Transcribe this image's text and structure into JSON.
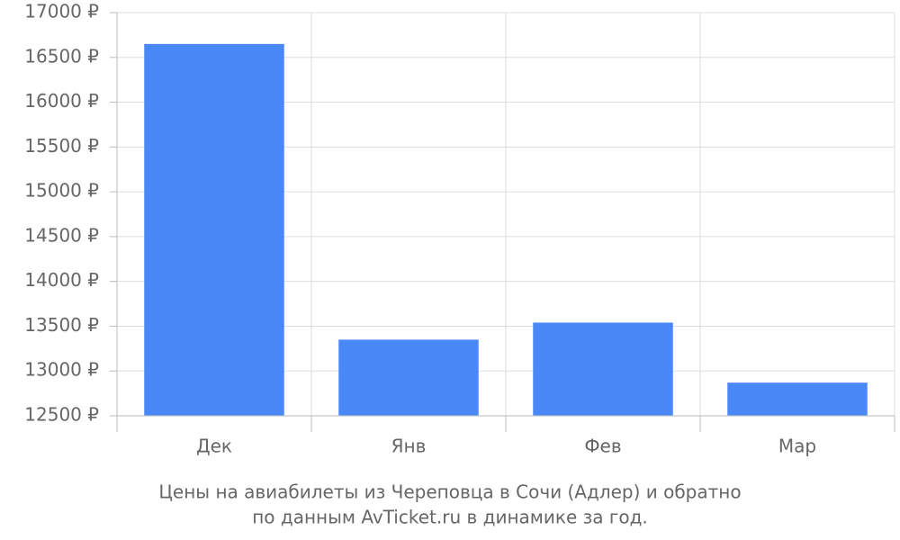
{
  "chart_data": {
    "type": "bar",
    "caption": [
      "Цены на авиабилеты из Череповца в Сочи (Адлер) и обратно",
      "по данным AvTicket.ru в динамике за год."
    ],
    "categories": [
      "Дек",
      "Янв",
      "Фев",
      "Мар"
    ],
    "values": [
      16650,
      13350,
      13540,
      12870
    ],
    "color": "#4a88f8",
    "ylim": [
      12500,
      17000
    ],
    "yticks": [
      {
        "value": 12500,
        "label": "12500 ₽"
      },
      {
        "value": 13000,
        "label": "13000 ₽"
      },
      {
        "value": 13500,
        "label": "13500 ₽"
      },
      {
        "value": 14000,
        "label": "14000 ₽"
      },
      {
        "value": 14500,
        "label": "14500 ₽"
      },
      {
        "value": 15000,
        "label": "15000 ₽"
      },
      {
        "value": 15500,
        "label": "15500 ₽"
      },
      {
        "value": 16000,
        "label": "16000 ₽"
      },
      {
        "value": 16500,
        "label": "16500 ₽"
      },
      {
        "value": 17000,
        "label": "17000 ₽"
      }
    ],
    "grid": true
  }
}
